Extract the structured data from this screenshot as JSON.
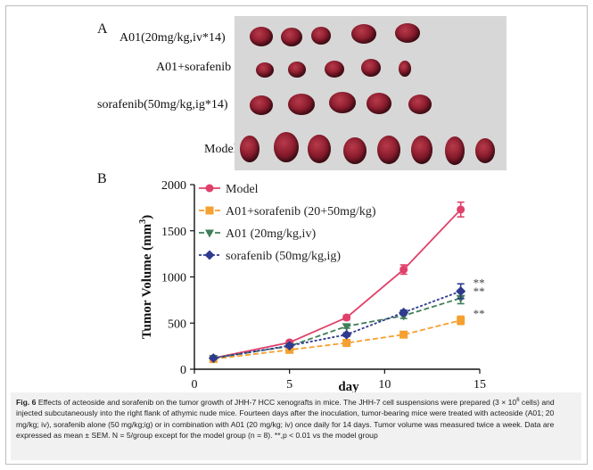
{
  "panel_a": {
    "label": "A",
    "rows": [
      {
        "label": "A01(20mg/kg,iv*14)"
      },
      {
        "label": "A01+sorafenib"
      },
      {
        "label": "sorafenib(50mg/kg,ig*14)"
      },
      {
        "label": "Model"
      }
    ]
  },
  "panel_b": {
    "label": "B"
  },
  "chart_data": {
    "type": "line",
    "xlabel": "day",
    "ylabel": "Tumor Volume (mm",
    "ylabel_sup": "3",
    "ylabel_close": ")",
    "xlim": [
      0,
      15
    ],
    "ylim": [
      0,
      2000
    ],
    "xticks": [
      0,
      5,
      10,
      15
    ],
    "yticks": [
      0,
      500,
      1000,
      1500,
      2000
    ],
    "legend_position": "top-left",
    "series": [
      {
        "name": "Model",
        "color": "#e0406a",
        "marker": "circle",
        "dash": "solid",
        "x": [
          1,
          5,
          8,
          11,
          14
        ],
        "y": [
          120,
          290,
          560,
          1080,
          1730
        ],
        "err": [
          0,
          20,
          25,
          50,
          80
        ]
      },
      {
        "name": "A01+sorafenib (20+50mg/kg)",
        "color": "#f5a030",
        "marker": "square",
        "dash": "dashed",
        "x": [
          1,
          5,
          8,
          11,
          14
        ],
        "y": [
          110,
          210,
          285,
          375,
          530
        ],
        "err": [
          0,
          10,
          15,
          20,
          45
        ]
      },
      {
        "name": "A01 (20mg/kg,iv)",
        "color": "#3f7f5a",
        "marker": "triangle-down",
        "dash": "dashed",
        "x": [
          1,
          5,
          8,
          11,
          14
        ],
        "y": [
          120,
          250,
          465,
          580,
          770
        ],
        "err": [
          0,
          12,
          20,
          30,
          60
        ]
      },
      {
        "name": "sorafenib (50mg/kg,ig)",
        "color": "#2f3a8f",
        "marker": "diamond",
        "dash": "dotted",
        "x": [
          1,
          5,
          8,
          11,
          14
        ],
        "y": [
          120,
          255,
          375,
          615,
          845
        ],
        "err": [
          0,
          12,
          20,
          25,
          80
        ]
      }
    ],
    "annotations": [
      "**",
      "**",
      "**"
    ]
  },
  "caption": {
    "fig_label": "Fig. 6",
    "text": " Effects of acteoside and sorafenib on the tumor growth of JHH-7 HCC xenografts in mice. The JHH-7 cell suspensions were prepared (3 × 10",
    "sup": "6",
    "text2": " cells) and injected subcutaneously into the right flank of athymic nude mice. Fourteen days after the inoculation, tumor-bearing mice were treated with acteoside (A01; 20 mg/kg; iv), sorafenib alone (50 mg/kg;ig) or in combination with A01 (20 mg/kg; iv) once daily for 14 days. Tumor volume was measured twice a week. Data are expressed as mean ± SEM. N = 5/group except for the model group (n = 8). **,p < 0.01 vs the model group"
  }
}
